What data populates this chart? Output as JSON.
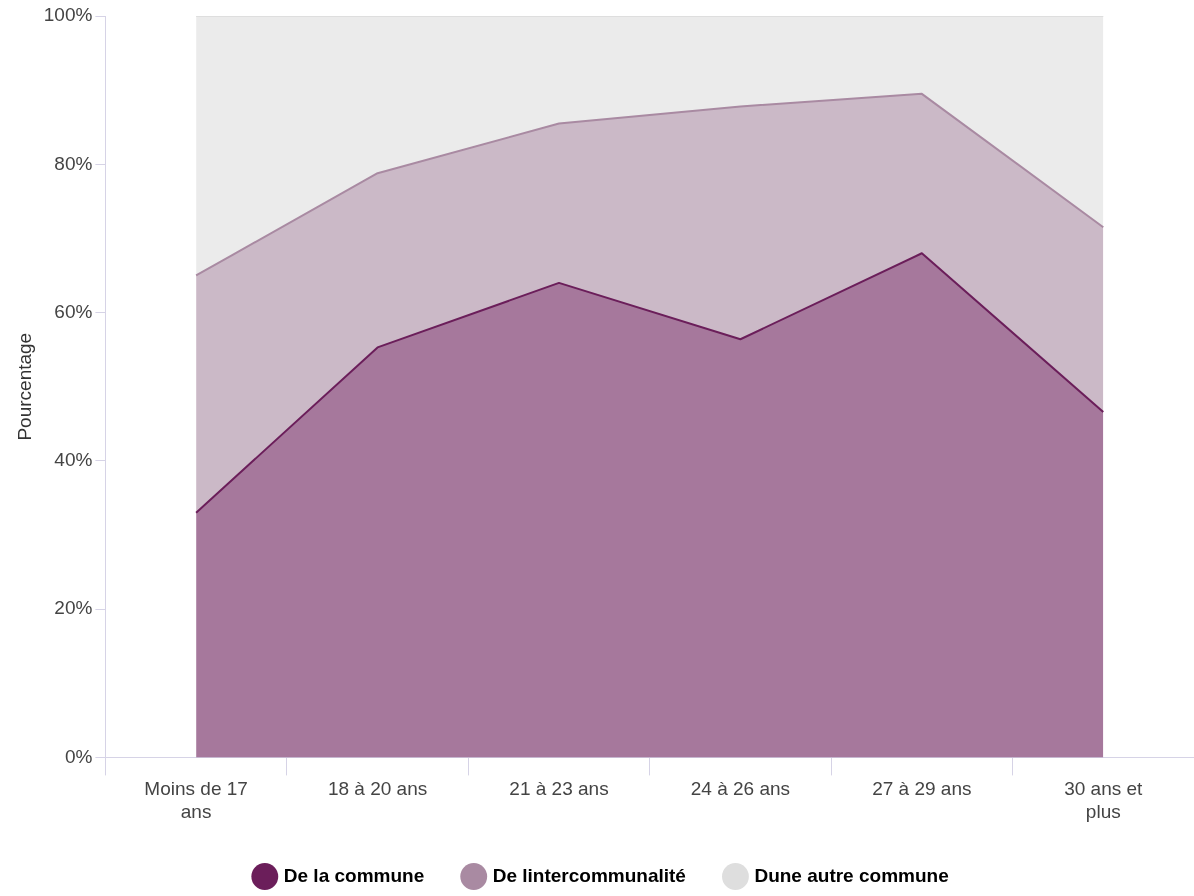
{
  "chart_data": {
    "type": "area",
    "stacked": true,
    "ylabel": "Pourcentage",
    "categories": [
      "Moins de 17 ans",
      "18 à 20 ans",
      "21 à 23 ans",
      "24 à 26 ans",
      "27 à 29 ans",
      "30 ans et plus"
    ],
    "series": [
      {
        "name": "De la commune",
        "color": "#6b1e5a",
        "values": [
          33,
          55.3,
          64,
          56.4,
          68,
          46.6
        ]
      },
      {
        "name": "De lintercommunalité",
        "color": "#a98aa2",
        "values": [
          32,
          23.5,
          21.5,
          31.4,
          21.5,
          24.9
        ]
      },
      {
        "name": "Dune autre commune",
        "color": "#dedede",
        "values": [
          35,
          21.2,
          14.5,
          12.2,
          10.5,
          28.5
        ]
      }
    ],
    "ylim": [
      0,
      100
    ],
    "yticks": [
      {
        "value": 0,
        "label": "0%"
      },
      {
        "value": 20,
        "label": "20%"
      },
      {
        "value": 40,
        "label": "40%"
      },
      {
        "value": 60,
        "label": "60%"
      },
      {
        "value": 80,
        "label": "80%"
      },
      {
        "value": 100,
        "label": "100%"
      }
    ],
    "grid": false,
    "legend": "bottom",
    "marker": "none",
    "line_style": "solid"
  }
}
